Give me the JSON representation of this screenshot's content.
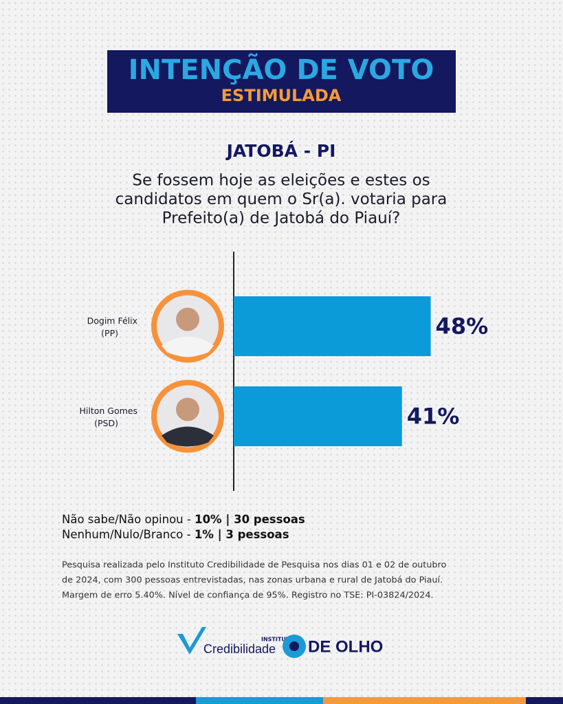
{
  "chart_data": {
    "type": "bar",
    "title": "INTENÇÃO DE VOTO",
    "subtitle": "ESTIMULADA",
    "location": "JATOBÁ - PI",
    "question": [
      "Se fossem hoje as eleições e estes os",
      "candidatos em quem o Sr(a). votaria para",
      "Prefeito(a) de Jatobá do Piauí?"
    ],
    "categories": [
      "Dogim Félix",
      "Hilton Gomes"
    ],
    "parties": [
      "(PP)",
      "(PSD)"
    ],
    "values": [
      48,
      41
    ],
    "value_labels": [
      "48%",
      "41%"
    ],
    "color": "#0b9bd8",
    "notes": [
      {
        "label": "Não sabe/Não opinou - ",
        "value": "10% | 30 pessoas"
      },
      {
        "label": "Nenhum/Nulo/Branco - ",
        "value": "1% | 3 pessoas"
      }
    ],
    "methodology": [
      "Pesquisa realizada pelo Instituto Credibilidade de Pesquisa nos dias 01 e 02 de outubro",
      "de 2024, com 300 pessoas entrevistadas, nas zonas urbana e rural de Jatobá do Piauí.",
      "Margem de erro 5.40%. Nível de confiança de 95%. Registro no TSE: PI-03824/2024."
    ],
    "logos": {
      "institute_small": "INSTITUTO",
      "institute": "Credibilidade",
      "media": "DE OLHO"
    }
  }
}
